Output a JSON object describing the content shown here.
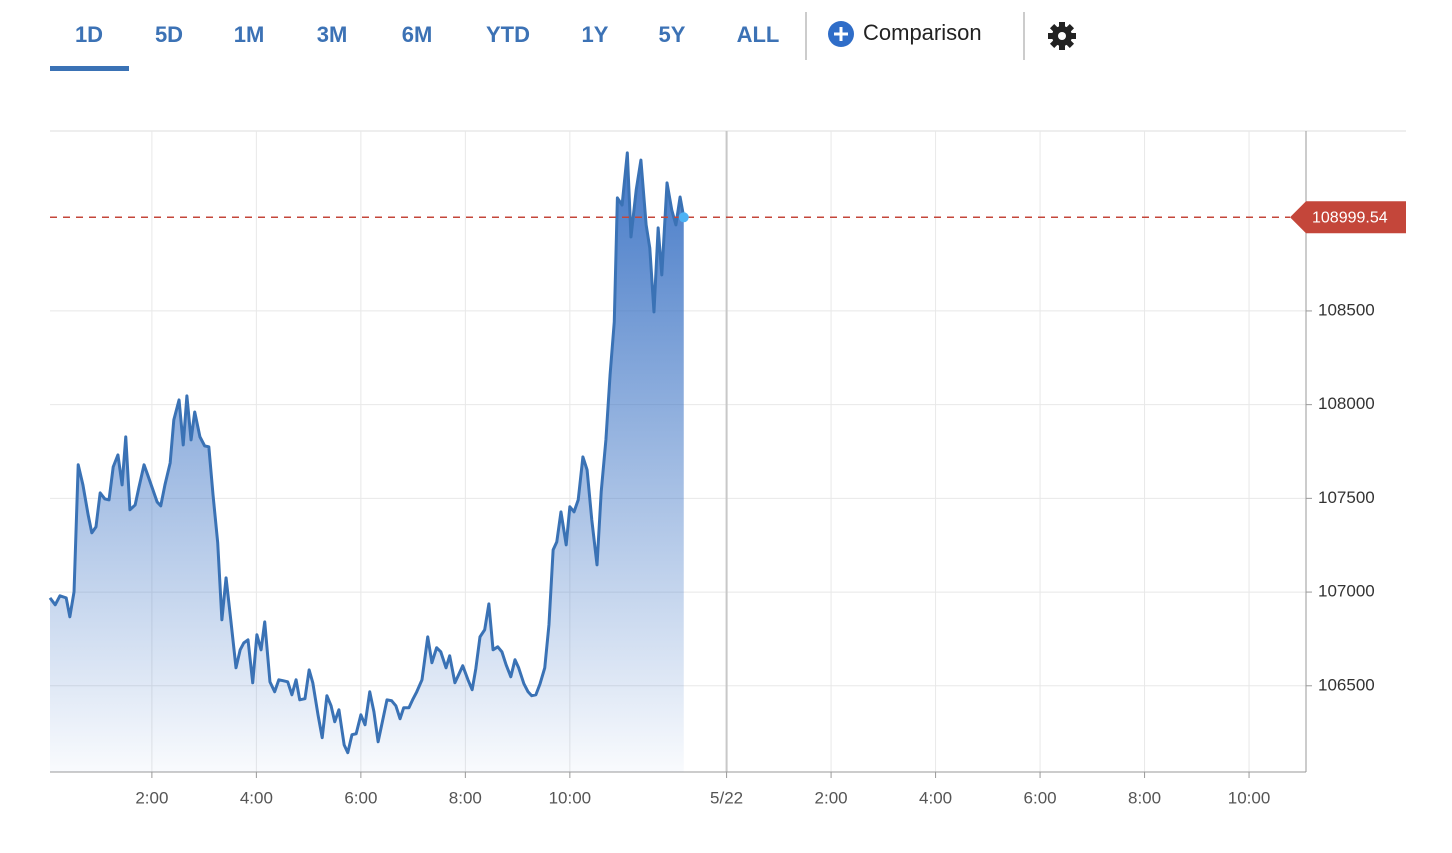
{
  "toolbar": {
    "ranges": [
      "1D",
      "5D",
      "1M",
      "3M",
      "6M",
      "YTD",
      "1Y",
      "5Y",
      "ALL"
    ],
    "active": 0,
    "comparison": "Comparison"
  },
  "chart_data": {
    "type": "area",
    "color": "#3a72b5",
    "x": [
      0.05,
      0.15,
      0.24,
      0.36,
      0.43,
      0.51,
      0.59,
      0.68,
      0.78,
      0.85,
      0.93,
      1.01,
      1.1,
      1.18,
      1.26,
      1.35,
      1.43,
      1.5,
      1.58,
      1.68,
      1.75,
      1.85,
      1.92,
      2.02,
      2.1,
      2.17,
      2.25,
      2.35,
      2.42,
      2.52,
      2.6,
      2.67,
      2.75,
      2.82,
      2.92,
      3.01,
      3.09,
      3.17,
      3.26,
      3.34,
      3.42,
      3.51,
      3.61,
      3.69,
      3.76,
      3.84,
      3.93,
      4.01,
      4.09,
      4.16,
      4.26,
      4.35,
      4.43,
      4.51,
      4.6,
      4.68,
      4.76,
      4.83,
      4.93,
      5.01,
      5.08,
      5.18,
      5.26,
      5.35,
      5.43,
      5.5,
      5.58,
      5.68,
      5.75,
      5.83,
      5.91,
      6.0,
      6.08,
      6.17,
      6.25,
      6.33,
      6.42,
      6.5,
      6.59,
      6.67,
      6.75,
      6.82,
      6.92,
      6.99,
      7.07,
      7.17,
      7.28,
      7.36,
      7.45,
      7.53,
      7.63,
      7.7,
      7.8,
      7.88,
      7.95,
      8.05,
      8.13,
      8.2,
      8.28,
      8.37,
      8.45,
      8.53,
      8.62,
      8.7,
      8.78,
      8.87,
      8.95,
      9.02,
      9.12,
      9.2,
      9.27,
      9.35,
      9.43,
      9.52,
      9.6,
      9.68,
      9.75,
      9.83,
      9.93,
      10.0,
      10.08,
      10.16,
      10.25,
      10.33,
      10.42,
      10.52,
      10.6,
      10.69,
      10.77,
      10.85,
      10.91,
      11.0,
      11.1,
      11.17,
      11.27,
      11.36,
      11.46,
      11.53,
      11.61,
      11.69,
      11.76,
      11.86,
      11.95,
      12.03,
      12.11,
      12.18
    ],
    "values": [
      106969,
      106932,
      106980,
      106969,
      106868,
      107001,
      107679,
      107572,
      107412,
      107316,
      107348,
      107529,
      107497,
      107492,
      107668,
      107732,
      107572,
      107828,
      107439,
      107465,
      107556,
      107679,
      107625,
      107545,
      107481,
      107460,
      107572,
      107689,
      107919,
      108025,
      107785,
      108047,
      107812,
      107961,
      107828,
      107780,
      107775,
      107519,
      107263,
      106852,
      107076,
      106852,
      106596,
      106692,
      106729,
      106745,
      106516,
      106772,
      106692,
      106841,
      106521,
      106468,
      106532,
      106527,
      106521,
      106452,
      106532,
      106425,
      106431,
      106585,
      106516,
      106345,
      106223,
      106447,
      106393,
      106308,
      106372,
      106185,
      106143,
      106239,
      106244,
      106345,
      106292,
      106468,
      106361,
      106201,
      106319,
      106425,
      106420,
      106393,
      106324,
      106383,
      106383,
      106425,
      106468,
      106532,
      106761,
      106623,
      106703,
      106681,
      106596,
      106660,
      106516,
      106564,
      106607,
      106532,
      106479,
      106591,
      106761,
      106799,
      106937,
      106692,
      106708,
      106681,
      106612,
      106548,
      106639,
      106596,
      106511,
      106468,
      106447,
      106452,
      106511,
      106596,
      106825,
      107225,
      107268,
      107428,
      107252,
      107455,
      107428,
      107492,
      107721,
      107652,
      107385,
      107145,
      107535,
      107812,
      108159,
      108441,
      109103,
      109065,
      109343,
      108895,
      109145,
      109305,
      108959,
      108836,
      108495,
      108943,
      108692,
      109183,
      109039,
      108959,
      109108,
      108999.54
    ],
    "reference_line": {
      "value": 108999.54,
      "color": "#c4463a"
    },
    "xlim": [
      0.05,
      24.09
    ],
    "xticks": [
      {
        "value": 2,
        "label": "2:00"
      },
      {
        "value": 4,
        "label": "4:00"
      },
      {
        "value": 6,
        "label": "6:00"
      },
      {
        "value": 8,
        "label": "8:00"
      },
      {
        "value": 10,
        "label": "10:00"
      },
      {
        "value": 13,
        "label": "5/22"
      },
      {
        "value": 15,
        "label": "2:00"
      },
      {
        "value": 17,
        "label": "4:00"
      },
      {
        "value": 19,
        "label": "6:00"
      },
      {
        "value": 21,
        "label": "8:00"
      },
      {
        "value": 23,
        "label": "10:00"
      }
    ],
    "ylim": [
      106040,
      109460
    ],
    "yticks": [
      106500,
      107000,
      107500,
      108000,
      108500
    ],
    "grid": true
  }
}
